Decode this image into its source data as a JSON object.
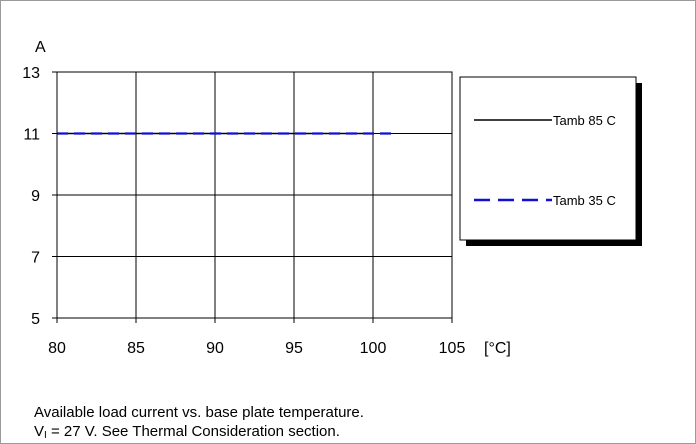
{
  "chart_data": {
    "type": "line",
    "ylabel": "A",
    "xunit": "[°C]",
    "xlim": [
      80,
      105
    ],
    "ylim": [
      5,
      13
    ],
    "xticks": [
      "80",
      "85",
      "90",
      "95",
      "100",
      "105"
    ],
    "yticks": [
      "13",
      "11",
      "9",
      "7",
      "5"
    ],
    "grid": true,
    "legend_position": "right",
    "series": [
      {
        "name": "Tamb 85 C",
        "style": "solid",
        "color": "#000000",
        "x": [
          80,
          100
        ],
        "y": [
          11,
          11
        ]
      },
      {
        "name": "Tamb 35 C",
        "style": "dashed",
        "color": "#1010d0",
        "x": [
          80,
          101.2
        ],
        "y": [
          11,
          11
        ]
      }
    ]
  },
  "caption": {
    "line1": "Available load current vs. base plate temperature.",
    "v_symbol": "V",
    "v_subscript": "I",
    "line2_rest": " = 27 V. See Thermal Consideration section."
  }
}
